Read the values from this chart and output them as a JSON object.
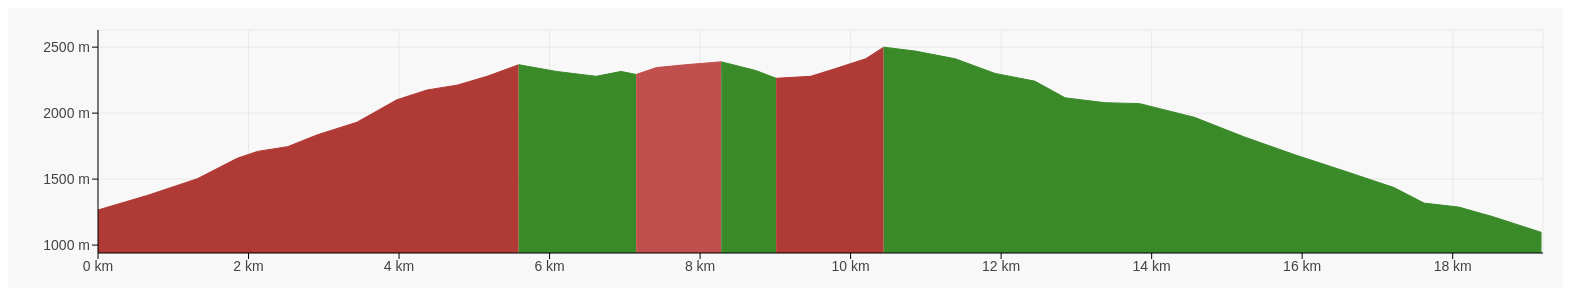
{
  "chart_data": {
    "type": "area",
    "xlim": [
      0,
      19.2
    ],
    "ylim": [
      940,
      2630
    ],
    "xticks": [
      {
        "value": 0,
        "label": "0 km"
      },
      {
        "value": 2,
        "label": "2 km"
      },
      {
        "value": 4,
        "label": "4 km"
      },
      {
        "value": 6,
        "label": "6 km"
      },
      {
        "value": 8,
        "label": "8 km"
      },
      {
        "value": 10,
        "label": "10 km"
      },
      {
        "value": 12,
        "label": "12 km"
      },
      {
        "value": 14,
        "label": "14 km"
      },
      {
        "value": 16,
        "label": "16 km"
      },
      {
        "value": 18,
        "label": "18 km"
      }
    ],
    "yticks": [
      {
        "value": 1000,
        "label": "1000 m"
      },
      {
        "value": 1500,
        "label": "1500 m"
      },
      {
        "value": 2000,
        "label": "2000 m"
      },
      {
        "value": 2500,
        "label": "2500 m"
      }
    ],
    "grid": true,
    "series": [
      {
        "color": "#b03a35",
        "x": [
          0,
          0.66,
          1.32,
          1.85,
          2.12,
          2.52,
          2.91,
          3.44,
          3.97,
          4.37,
          4.77,
          5.17,
          5.59
        ],
        "values": [
          1266,
          1377,
          1503,
          1658,
          1710,
          1746,
          1835,
          1931,
          2101,
          2175,
          2212,
          2279,
          2367
        ]
      },
      {
        "color": "#3a8a2a",
        "x": [
          5.59,
          6.09,
          6.62,
          6.95,
          7.15
        ],
        "values": [
          2367,
          2316,
          2279,
          2316,
          2293
        ]
      },
      {
        "color": "#c0504d",
        "x": [
          7.15,
          7.42,
          7.81,
          8.28
        ],
        "values": [
          2293,
          2345,
          2367,
          2389
        ]
      },
      {
        "color": "#3a8a2a",
        "x": [
          8.28,
          8.74,
          9.01
        ],
        "values": [
          2389,
          2323,
          2264
        ]
      },
      {
        "color": "#b03a35",
        "x": [
          9.01,
          9.47,
          9.8,
          10.2,
          10.44
        ],
        "values": [
          2264,
          2279,
          2338,
          2412,
          2500
        ]
      },
      {
        "color": "#3a8a2a",
        "x": [
          10.44,
          10.86,
          11.39,
          11.92,
          12.45,
          12.85,
          13.38,
          13.84,
          14.57,
          15.23,
          15.89,
          16.56,
          17.22,
          17.62,
          18.08,
          18.54,
          19.18
        ],
        "values": [
          2500,
          2470,
          2412,
          2301,
          2242,
          2116,
          2079,
          2072,
          1968,
          1820,
          1687,
          1562,
          1436,
          1318,
          1288,
          1214,
          1096
        ]
      }
    ]
  }
}
